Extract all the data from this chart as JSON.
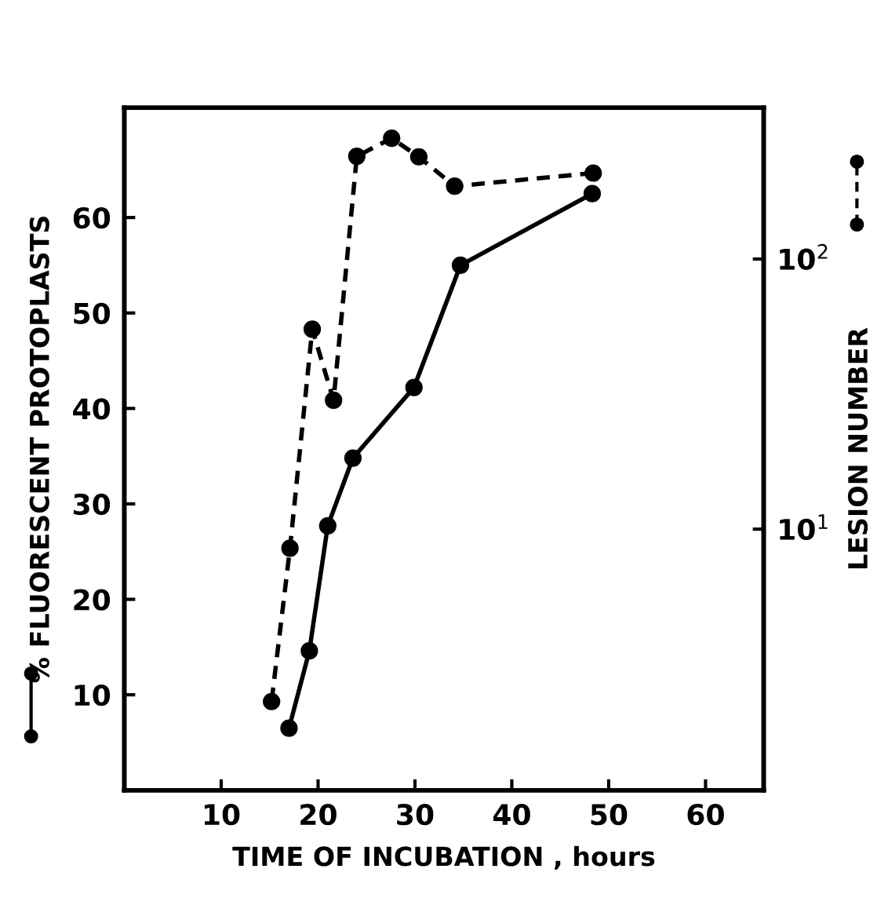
{
  "chart_data": {
    "type": "line",
    "xlabel": "TIME OF INCUBATION , hours",
    "ylabel": "% FLUORESCENT PROTOPLASTS",
    "y2label": "LESION NUMBER",
    "xlim": [
      0,
      66
    ],
    "xticks": [
      10,
      20,
      30,
      40,
      50,
      60
    ],
    "ylim": [
      0,
      71.5
    ],
    "yticks": [
      10,
      20,
      30,
      40,
      50,
      60
    ],
    "y2lim": [
      1.08,
      363
    ],
    "y2ticks": [
      {
        "value": 10,
        "label": "10$^{1}$"
      },
      {
        "value": 100,
        "label": "10$^{2}$"
      }
    ],
    "log": "y2",
    "grid": false,
    "legend": false,
    "marker": "circle",
    "series": [
      {
        "color": "#000000",
        "line_style": "solid",
        "x": [
          48.3,
          34.7,
          29.9,
          23.6,
          21.0,
          19.1,
          17.0
        ],
        "values": [
          62.5,
          55.0,
          42.2,
          34.8,
          27.7,
          14.6,
          6.5
        ]
      },
      {
        "color": "#000000",
        "line_style": "dashed",
        "axis": "y2",
        "x": [
          48.4,
          34.1,
          30.4,
          27.6,
          24.0,
          21.6,
          19.4,
          17.1,
          15.2
        ],
        "values": [
          208,
          186,
          239,
          280,
          240,
          30,
          55,
          8.5,
          2.3
        ]
      }
    ]
  }
}
